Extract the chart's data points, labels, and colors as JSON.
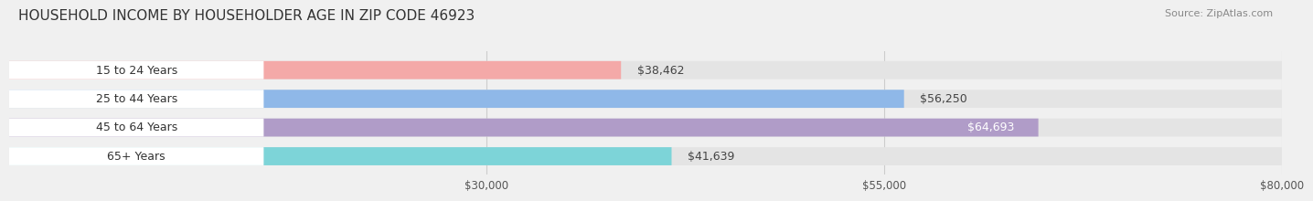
{
  "title": "HOUSEHOLD INCOME BY HOUSEHOLDER AGE IN ZIP CODE 46923",
  "source": "Source: ZipAtlas.com",
  "categories": [
    "15 to 24 Years",
    "25 to 44 Years",
    "45 to 64 Years",
    "65+ Years"
  ],
  "values": [
    38462,
    56250,
    64693,
    41639
  ],
  "bar_colors": [
    "#f4a9a8",
    "#8fb8e8",
    "#b09cc8",
    "#7dd4d8"
  ],
  "label_colors": [
    "#333333",
    "#333333",
    "#ffffff",
    "#333333"
  ],
  "value_labels": [
    "$38,462",
    "$56,250",
    "$64,693",
    "$41,639"
  ],
  "xlim": [
    0,
    80000
  ],
  "xticks": [
    30000,
    55000,
    80000
  ],
  "xtick_labels": [
    "$30,000",
    "$55,000",
    "$80,000"
  ],
  "bar_height": 0.55,
  "background_color": "#f0f0f0",
  "bar_background_color": "#e4e4e4",
  "title_fontsize": 11,
  "source_fontsize": 8,
  "label_fontsize": 9,
  "value_fontsize": 9,
  "tick_fontsize": 8.5
}
